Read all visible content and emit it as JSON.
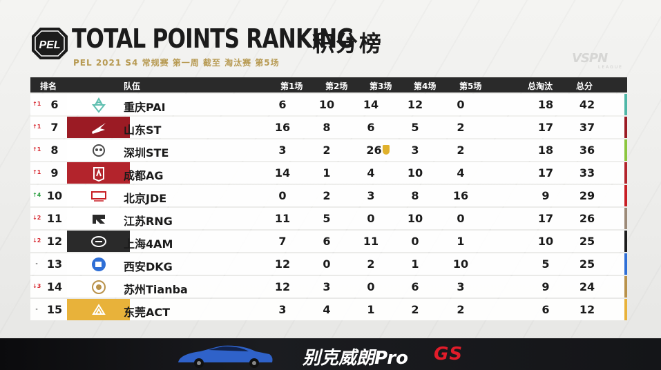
{
  "header": {
    "logo_text": "PEL",
    "title": "TOTAL POINTS RANKING",
    "title_cn": "积分榜",
    "subtitle": "PEL 2021 S4 常规赛 第一周 截至 淘汰赛 第5场",
    "broadcaster": "VSPN",
    "broadcaster_sub": "LEAGUE"
  },
  "columns": {
    "rank": "排名",
    "team": "队伍",
    "g1": "第1场",
    "g2": "第2场",
    "g3": "第3场",
    "g4": "第4场",
    "g5": "第5场",
    "elims": "总淘汰",
    "total": "总分"
  },
  "rows": [
    {
      "change": "↑1",
      "change_color": "#d6242c",
      "rank": "6",
      "team": "重庆PAI",
      "logo": "pai-logo",
      "logo_bg": "#ffffff",
      "logo_fg": "#5fbfb0",
      "g": [
        "6",
        "10",
        "14",
        "12",
        "0"
      ],
      "elims": "18",
      "total": "42",
      "bar": "#4fb7a7"
    },
    {
      "change": "↑1",
      "change_color": "#d6242c",
      "rank": "7",
      "team": "山东ST",
      "logo": "st-logo",
      "logo_bg": "#9b1b24",
      "logo_fg": "#ffffff",
      "g": [
        "16",
        "8",
        "6",
        "5",
        "2"
      ],
      "elims": "17",
      "total": "37",
      "bar": "#9b1b24"
    },
    {
      "change": "↑1",
      "change_color": "#d6242c",
      "rank": "8",
      "team": "深圳STE",
      "logo": "ste-logo",
      "logo_bg": "#ffffff",
      "logo_fg": "#4a4a4a",
      "g": [
        "3",
        "2",
        "26",
        "3",
        "2"
      ],
      "elims": "18",
      "total": "36",
      "bar": "#8cc63f",
      "medal_game": 2
    },
    {
      "change": "↑1",
      "change_color": "#d6242c",
      "rank": "9",
      "team": "成都AG",
      "logo": "ag-logo",
      "logo_bg": "#b3242c",
      "logo_fg": "#ffffff",
      "g": [
        "14",
        "1",
        "4",
        "10",
        "4"
      ],
      "elims": "17",
      "total": "33",
      "bar": "#b3242c"
    },
    {
      "change": "↑4",
      "change_color": "#2ea043",
      "rank": "10",
      "team": "北京JDE",
      "logo": "jde-logo",
      "logo_bg": "#ffffff",
      "logo_fg": "#c81e24",
      "g": [
        "0",
        "2",
        "3",
        "8",
        "16"
      ],
      "elims": "9",
      "total": "29",
      "bar": "#c81e24"
    },
    {
      "change": "↓2",
      "change_color": "#d6242c",
      "rank": "11",
      "team": "江苏RNG",
      "logo": "rng-logo",
      "logo_bg": "#ffffff",
      "logo_fg": "#2a2a2a",
      "g": [
        "11",
        "5",
        "0",
        "10",
        "0"
      ],
      "elims": "17",
      "total": "26",
      "bar": "#9c8a78"
    },
    {
      "change": "↓2",
      "change_color": "#d6242c",
      "rank": "12",
      "team": "上海4AM",
      "logo": "4am-logo",
      "logo_bg": "#2a2a2a",
      "logo_fg": "#ffffff",
      "g": [
        "7",
        "6",
        "11",
        "0",
        "1"
      ],
      "elims": "10",
      "total": "25",
      "bar": "#1c1c1c"
    },
    {
      "change": "-",
      "change_color": "#555555",
      "rank": "13",
      "team": "西安DKG",
      "logo": "dkg-logo",
      "logo_bg": "#ffffff",
      "logo_fg": "#2f6fd6",
      "g": [
        "12",
        "0",
        "2",
        "1",
        "10"
      ],
      "elims": "5",
      "total": "25",
      "bar": "#2f6fd6"
    },
    {
      "change": "↓3",
      "change_color": "#d6242c",
      "rank": "14",
      "team": "苏州Tianba",
      "logo": "tianba-logo",
      "logo_bg": "#ffffff",
      "logo_fg": "#b9924a",
      "g": [
        "12",
        "3",
        "0",
        "6",
        "3"
      ],
      "elims": "9",
      "total": "24",
      "bar": "#b9924a"
    },
    {
      "change": "-",
      "change_color": "#555555",
      "rank": "15",
      "team": "东莞ACT",
      "logo": "act-logo",
      "logo_bg": "#e8b23a",
      "logo_fg": "#ffffff",
      "g": [
        "3",
        "4",
        "1",
        "2",
        "2"
      ],
      "elims": "6",
      "total": "12",
      "bar": "#e8b23a"
    }
  ],
  "ad": {
    "text": "别克威朗Pro",
    "badge": "GS"
  }
}
